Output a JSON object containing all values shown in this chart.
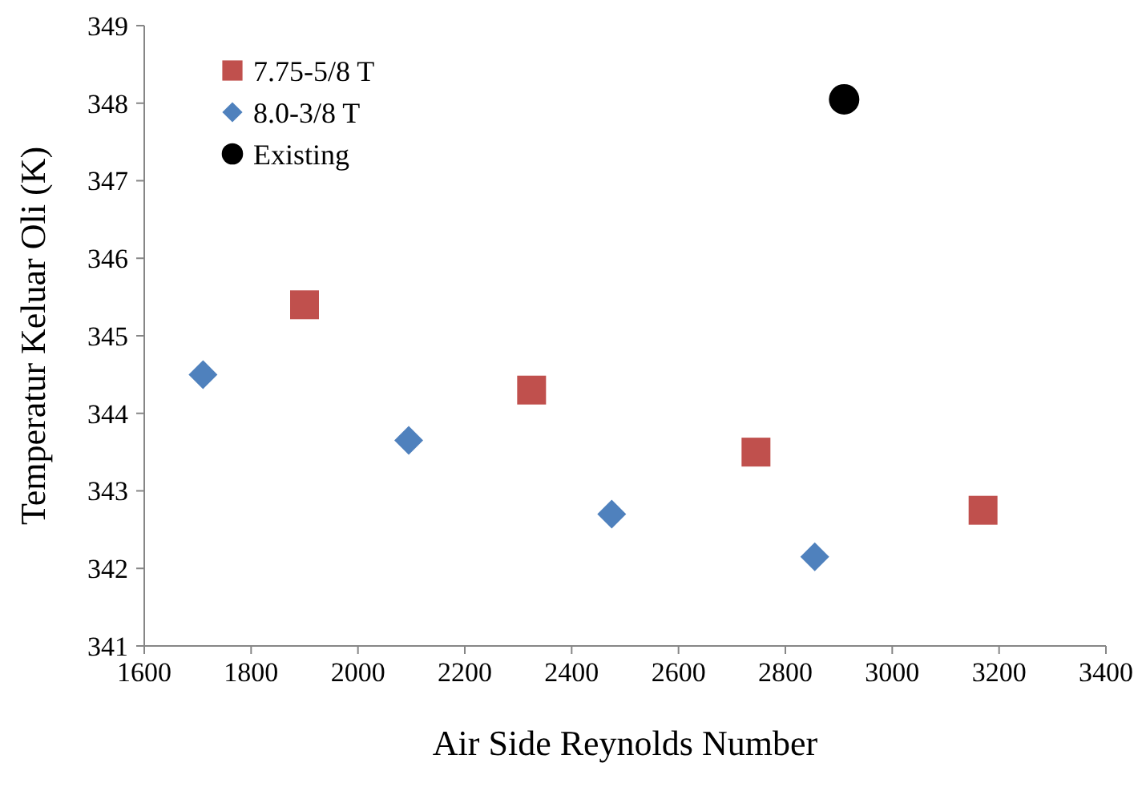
{
  "chart_data": {
    "type": "scatter",
    "xlabel": "Air Side Reynolds Number",
    "ylabel": "Temperatur Keluar Oli (K)",
    "xlim": [
      1600,
      3400
    ],
    "xticks": [
      1600,
      1800,
      2000,
      2200,
      2400,
      2600,
      2800,
      3000,
      3200,
      3400
    ],
    "ylim": [
      341,
      349
    ],
    "yticks": [
      341,
      342,
      343,
      344,
      345,
      346,
      347,
      348,
      349
    ],
    "grid": false,
    "legend": "top left",
    "series": [
      {
        "name": "7.75-5/8 T",
        "color": "#c0504d",
        "marker": "square",
        "x": [
          1900,
          2325,
          2745,
          3170
        ],
        "values": [
          345.4,
          344.3,
          343.5,
          342.75
        ]
      },
      {
        "name": "8.0-3/8 T",
        "color": "#4f81bd",
        "marker": "diamond",
        "x": [
          1710,
          2095,
          2475,
          2855
        ],
        "values": [
          344.5,
          343.65,
          342.7,
          342.15
        ]
      },
      {
        "name": "Existing",
        "color": "#000000",
        "marker": "circle",
        "x": [
          2910
        ],
        "values": [
          348.05
        ]
      }
    ]
  }
}
